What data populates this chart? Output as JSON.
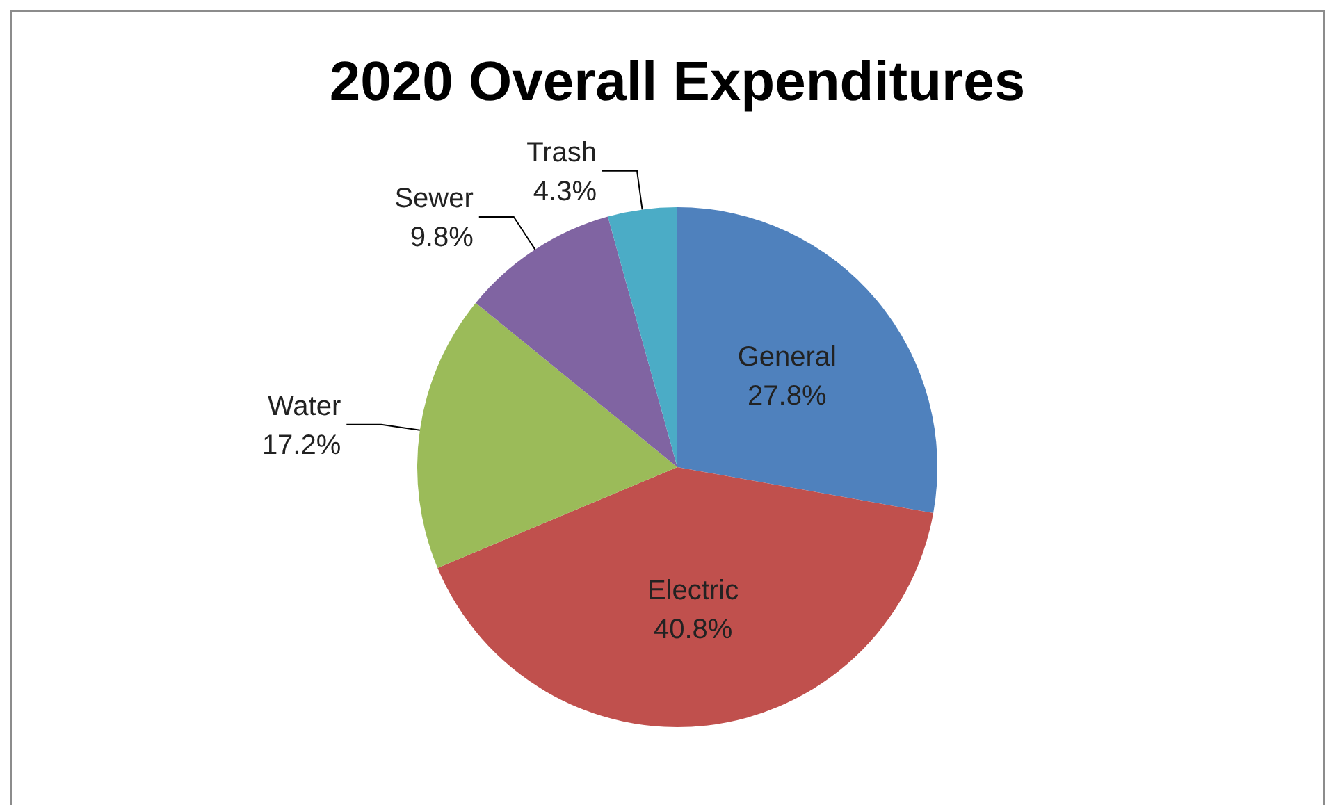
{
  "chart_data": {
    "type": "pie",
    "title": "2020 Overall Expenditures",
    "categories": [
      "General",
      "Electric",
      "Water",
      "Sewer",
      "Trash"
    ],
    "values": [
      27.8,
      40.8,
      17.2,
      9.8,
      4.3
    ],
    "value_labels": [
      "27.8%",
      "40.8%",
      "17.2%",
      "9.8%",
      "4.3%"
    ],
    "colors": [
      "#4f81bd",
      "#c0504d",
      "#9bbb59",
      "#8064a2",
      "#4bacc6"
    ]
  }
}
